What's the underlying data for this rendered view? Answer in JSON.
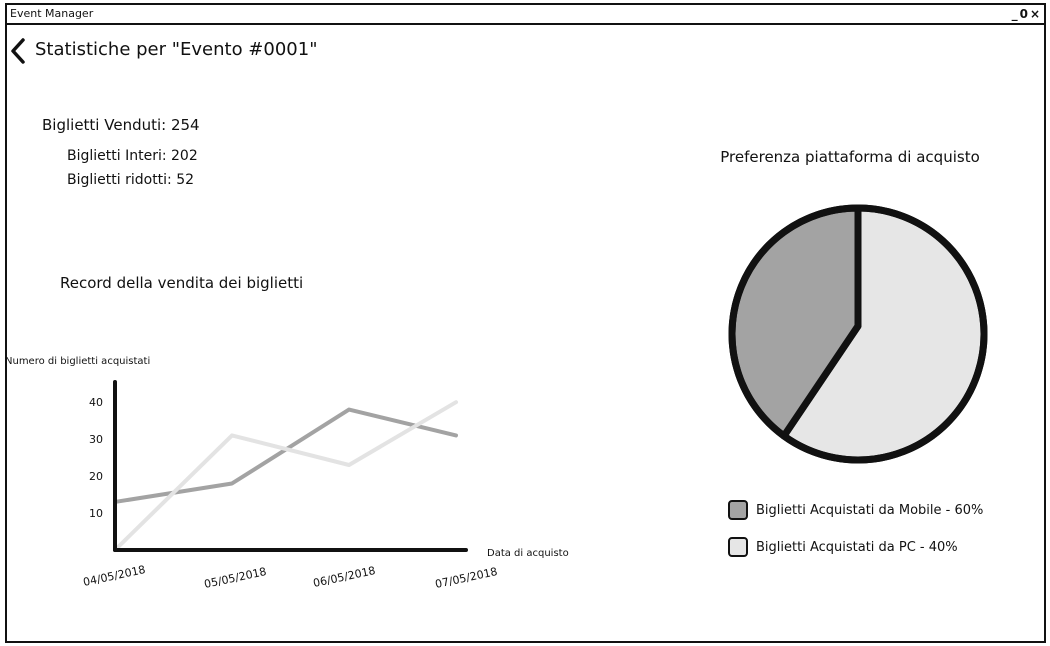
{
  "window": {
    "title": "Event Manager",
    "controls": {
      "minimize": "_",
      "maximize": "0",
      "close": "×"
    }
  },
  "header": {
    "title": "Statistiche per \"Evento #0001\""
  },
  "stats": {
    "total": "Biglietti Venduti: 254",
    "full": "Biglietti Interi: 202",
    "reduced": "Biglietti ridotti: 52"
  },
  "line_section_title": "Record della vendita dei biglietti",
  "pie_section_title": "Preferenza piattaforma di acquisto",
  "legend": [
    {
      "label": "Biglietti Acquistati da Mobile - 60%",
      "color": "#a3a3a3"
    },
    {
      "label": "Biglietti Acquistati da PC - 40%",
      "color": "#e6e6e6"
    }
  ],
  "chart_data": [
    {
      "type": "line",
      "ylabel": "Numero di biglietti acquistati",
      "xlabel": "Data di acquisto",
      "categories": [
        "04/05/2018",
        "05/05/2018",
        "06/05/2018",
        "07/05/2018"
      ],
      "yticks": [
        10,
        20,
        30,
        40
      ],
      "ylim": [
        0,
        46
      ],
      "series": [
        {
          "values": [
            13,
            18,
            38,
            31
          ],
          "color": "#a3a3a3"
        },
        {
          "values": [
            0,
            31,
            23,
            40
          ],
          "color": "#e3e3e3"
        }
      ]
    },
    {
      "type": "pie",
      "title": "Preferenza piattaforma di acquisto",
      "slices": [
        {
          "label": "Biglietti Acquistati da Mobile",
          "value": 60,
          "color": "#e6e6e6"
        },
        {
          "label": "Biglietti Acquistati da PC",
          "value": 40,
          "color": "#a3a3a3"
        }
      ]
    }
  ]
}
